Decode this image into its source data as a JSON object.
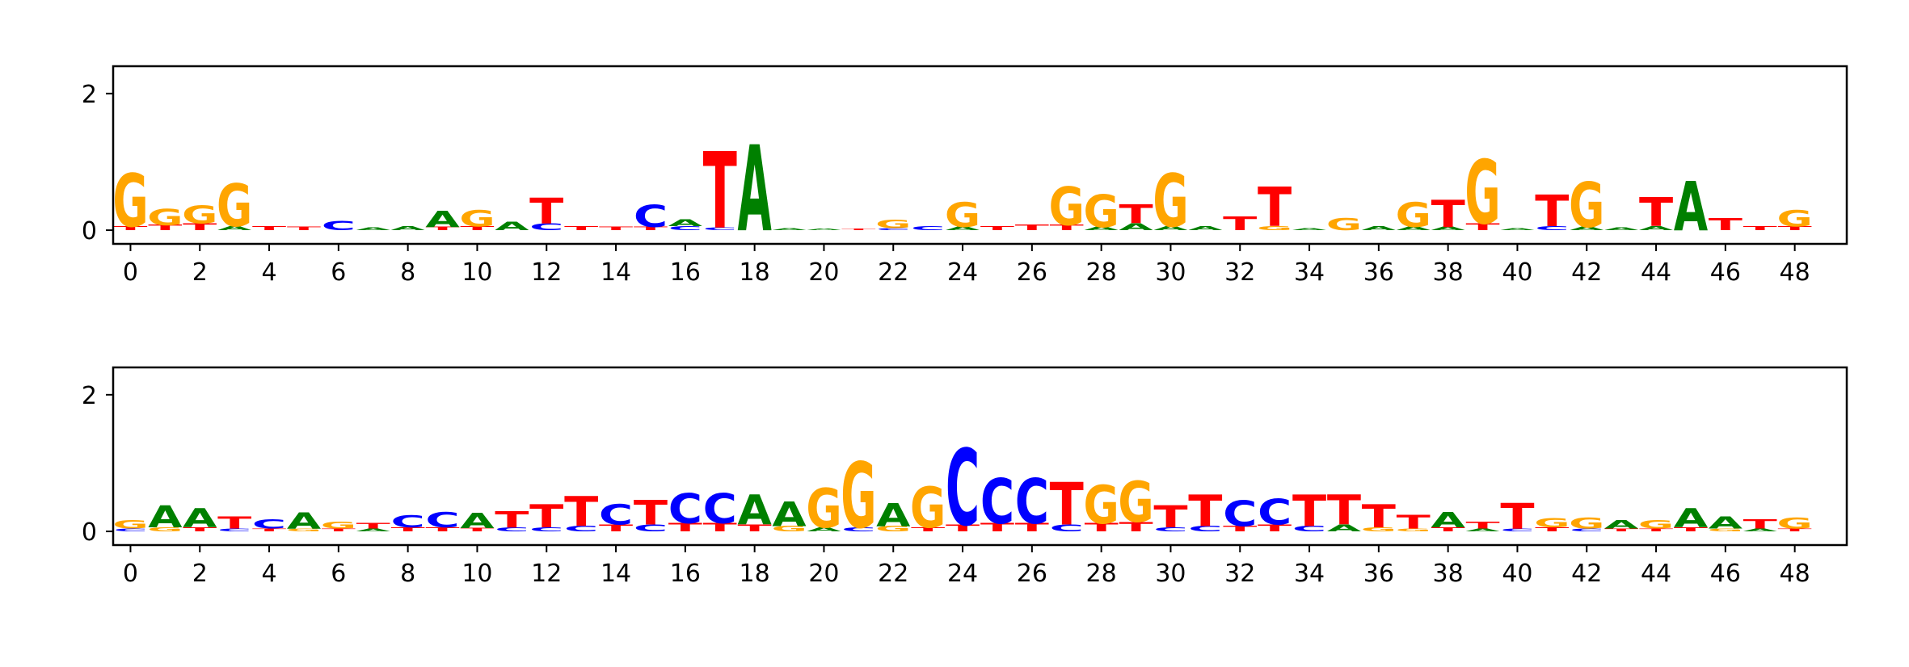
{
  "chart_data": [
    {
      "type": "sequence-logo",
      "title": "",
      "xlabel": "",
      "ylabel": "",
      "xlim": [
        -0.5,
        49.5
      ],
      "ylim": [
        -0.2,
        2.4
      ],
      "xticks": [
        0,
        2,
        4,
        6,
        8,
        10,
        12,
        14,
        16,
        18,
        20,
        22,
        24,
        26,
        28,
        30,
        32,
        34,
        36,
        38,
        40,
        42,
        44,
        46,
        48
      ],
      "yticks": [
        0,
        2
      ],
      "colors": {
        "A": "#008000",
        "C": "#0000ff",
        "G": "#ffa500",
        "T": "#ff0000"
      },
      "positions": [
        [
          [
            "G",
            0.78
          ],
          [
            "T",
            0.06
          ]
        ],
        [
          [
            "G",
            0.24
          ],
          [
            "T",
            0.08
          ]
        ],
        [
          [
            "G",
            0.26
          ],
          [
            "T",
            0.1
          ]
        ],
        [
          [
            "G",
            0.62
          ],
          [
            "A",
            0.06
          ]
        ],
        [
          [
            "T",
            0.06
          ]
        ],
        [
          [
            "T",
            0.05
          ]
        ],
        [
          [
            "C",
            0.14
          ]
        ],
        [
          [
            "A",
            0.04
          ]
        ],
        [
          [
            "A",
            0.06
          ]
        ],
        [
          [
            "A",
            0.24
          ],
          [
            "T",
            0.05
          ]
        ],
        [
          [
            "G",
            0.24
          ],
          [
            "T",
            0.06
          ]
        ],
        [
          [
            "A",
            0.12
          ]
        ],
        [
          [
            "T",
            0.38
          ],
          [
            "C",
            0.1
          ]
        ],
        [
          [
            "T",
            0.06
          ]
        ],
        [
          [
            "T",
            0.05
          ]
        ],
        [
          [
            "C",
            0.32
          ],
          [
            "T",
            0.05
          ]
        ],
        [
          [
            "A",
            0.1
          ],
          [
            "C",
            0.06
          ]
        ],
        [
          [
            "T",
            1.12
          ],
          [
            "C",
            0.04
          ]
        ],
        [
          [
            "A",
            1.26
          ]
        ],
        [
          [
            "A",
            0.03
          ]
        ],
        [
          [
            "A",
            0.02
          ]
        ],
        [
          [
            "T",
            0.02
          ]
        ],
        [
          [
            "G",
            0.12
          ],
          [
            "C",
            0.03
          ]
        ],
        [
          [
            "C",
            0.06
          ]
        ],
        [
          [
            "G",
            0.36
          ],
          [
            "A",
            0.05
          ]
        ],
        [
          [
            "T",
            0.06
          ]
        ],
        [
          [
            "T",
            0.08
          ]
        ],
        [
          [
            "G",
            0.56
          ],
          [
            "T",
            0.08
          ]
        ],
        [
          [
            "G",
            0.48
          ],
          [
            "A",
            0.05
          ]
        ],
        [
          [
            "T",
            0.28
          ],
          [
            "A",
            0.1
          ]
        ],
        [
          [
            "G",
            0.78
          ],
          [
            "A",
            0.06
          ]
        ],
        [
          [
            "A",
            0.06
          ]
        ],
        [
          [
            "T",
            0.2
          ]
        ],
        [
          [
            "T",
            0.58
          ],
          [
            "G",
            0.06
          ]
        ],
        [
          [
            "A",
            0.03
          ]
        ],
        [
          [
            "G",
            0.18
          ]
        ],
        [
          [
            "A",
            0.06
          ]
        ],
        [
          [
            "G",
            0.36
          ],
          [
            "A",
            0.05
          ]
        ],
        [
          [
            "T",
            0.4
          ],
          [
            "A",
            0.05
          ]
        ],
        [
          [
            "G",
            0.94
          ],
          [
            "T",
            0.1
          ]
        ],
        [
          [
            "A",
            0.03
          ]
        ],
        [
          [
            "T",
            0.46
          ],
          [
            "C",
            0.06
          ]
        ],
        [
          [
            "G",
            0.66
          ],
          [
            "A",
            0.05
          ]
        ],
        [
          [
            "A",
            0.04
          ]
        ],
        [
          [
            "T",
            0.42
          ],
          [
            "A",
            0.06
          ]
        ],
        [
          [
            "A",
            0.72
          ]
        ],
        [
          [
            "T",
            0.18
          ]
        ],
        [
          [
            "T",
            0.06
          ]
        ],
        [
          [
            "G",
            0.24
          ],
          [
            "T",
            0.06
          ]
        ]
      ]
    },
    {
      "type": "sequence-logo",
      "title": "",
      "xlabel": "",
      "ylabel": "",
      "xlim": [
        -0.5,
        49.5
      ],
      "ylim": [
        -0.2,
        2.4
      ],
      "xticks": [
        0,
        2,
        4,
        6,
        8,
        10,
        12,
        14,
        16,
        18,
        20,
        22,
        24,
        26,
        28,
        30,
        32,
        34,
        36,
        38,
        40,
        42,
        44,
        46,
        48
      ],
      "yticks": [
        0,
        2
      ],
      "colors": {
        "A": "#008000",
        "C": "#0000ff",
        "G": "#ffa500",
        "T": "#ff0000"
      },
      "positions": [
        [
          [
            "G",
            0.12
          ],
          [
            "C",
            0.04
          ]
        ],
        [
          [
            "A",
            0.32
          ],
          [
            "G",
            0.06
          ]
        ],
        [
          [
            "A",
            0.28
          ],
          [
            "T",
            0.06
          ]
        ],
        [
          [
            "T",
            0.18
          ],
          [
            "C",
            0.04
          ]
        ],
        [
          [
            "C",
            0.14
          ],
          [
            "T",
            0.04
          ]
        ],
        [
          [
            "A",
            0.24
          ],
          [
            "G",
            0.04
          ]
        ],
        [
          [
            "G",
            0.1
          ],
          [
            "T",
            0.04
          ]
        ],
        [
          [
            "T",
            0.08
          ],
          [
            "A",
            0.04
          ]
        ],
        [
          [
            "C",
            0.18
          ],
          [
            "T",
            0.06
          ]
        ],
        [
          [
            "C",
            0.22
          ],
          [
            "T",
            0.06
          ]
        ],
        [
          [
            "A",
            0.22
          ],
          [
            "T",
            0.05
          ]
        ],
        [
          [
            "T",
            0.24
          ],
          [
            "C",
            0.06
          ]
        ],
        [
          [
            "T",
            0.34
          ],
          [
            "C",
            0.06
          ]
        ],
        [
          [
            "T",
            0.44
          ],
          [
            "C",
            0.08
          ]
        ],
        [
          [
            "C",
            0.3
          ],
          [
            "T",
            0.1
          ]
        ],
        [
          [
            "T",
            0.36
          ],
          [
            "C",
            0.1
          ]
        ],
        [
          [
            "C",
            0.44
          ],
          [
            "T",
            0.12
          ]
        ],
        [
          [
            "C",
            0.44
          ],
          [
            "T",
            0.12
          ]
        ],
        [
          [
            "A",
            0.44
          ],
          [
            "T",
            0.1
          ]
        ],
        [
          [
            "A",
            0.36
          ],
          [
            "G",
            0.08
          ]
        ],
        [
          [
            "G",
            0.58
          ],
          [
            "A",
            0.06
          ]
        ],
        [
          [
            "G",
            0.96
          ],
          [
            "C",
            0.06
          ]
        ],
        [
          [
            "A",
            0.34
          ],
          [
            "G",
            0.08
          ]
        ],
        [
          [
            "G",
            0.6
          ],
          [
            "T",
            0.06
          ]
        ],
        [
          [
            "C",
            1.12
          ],
          [
            "T",
            0.1
          ]
        ],
        [
          [
            "C",
            0.66
          ],
          [
            "T",
            0.12
          ]
        ],
        [
          [
            "C",
            0.66
          ],
          [
            "T",
            0.12
          ]
        ],
        [
          [
            "T",
            0.62
          ],
          [
            "C",
            0.1
          ]
        ],
        [
          [
            "G",
            0.56
          ],
          [
            "T",
            0.12
          ]
        ],
        [
          [
            "G",
            0.6
          ],
          [
            "T",
            0.14
          ]
        ],
        [
          [
            "T",
            0.32
          ],
          [
            "C",
            0.06
          ]
        ],
        [
          [
            "T",
            0.46
          ],
          [
            "C",
            0.08
          ]
        ],
        [
          [
            "C",
            0.38
          ],
          [
            "T",
            0.08
          ]
        ],
        [
          [
            "C",
            0.38
          ],
          [
            "T",
            0.1
          ]
        ],
        [
          [
            "T",
            0.46
          ],
          [
            "C",
            0.08
          ]
        ],
        [
          [
            "T",
            0.44
          ],
          [
            "A",
            0.1
          ]
        ],
        [
          [
            "T",
            0.34
          ],
          [
            "G",
            0.06
          ]
        ],
        [
          [
            "T",
            0.2
          ],
          [
            "G",
            0.04
          ]
        ],
        [
          [
            "A",
            0.22
          ],
          [
            "T",
            0.06
          ]
        ],
        [
          [
            "T",
            0.1
          ],
          [
            "A",
            0.04
          ]
        ],
        [
          [
            "T",
            0.38
          ],
          [
            "C",
            0.04
          ]
        ],
        [
          [
            "G",
            0.14
          ],
          [
            "T",
            0.06
          ]
        ],
        [
          [
            "G",
            0.16
          ],
          [
            "C",
            0.04
          ]
        ],
        [
          [
            "A",
            0.12
          ],
          [
            "T",
            0.04
          ]
        ],
        [
          [
            "G",
            0.12
          ],
          [
            "T",
            0.04
          ]
        ],
        [
          [
            "A",
            0.28
          ],
          [
            "T",
            0.06
          ]
        ],
        [
          [
            "A",
            0.18
          ],
          [
            "G",
            0.04
          ]
        ],
        [
          [
            "T",
            0.14
          ],
          [
            "A",
            0.04
          ]
        ],
        [
          [
            "G",
            0.16
          ],
          [
            "T",
            0.04
          ]
        ]
      ]
    }
  ]
}
